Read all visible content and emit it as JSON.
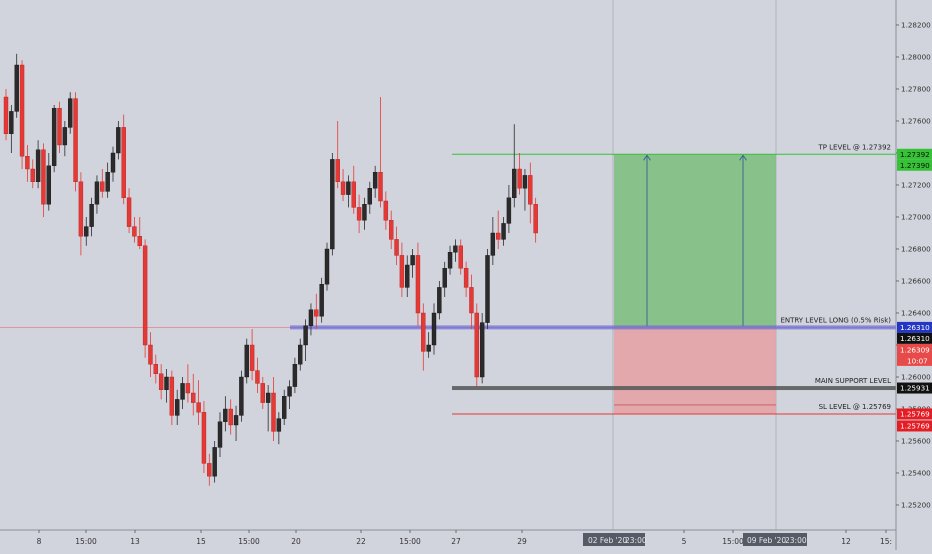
{
  "colors": {
    "background": "#d1d4dc",
    "bull_candle": "#2b2b2b",
    "bear_candle": "#e53935",
    "tp_line": "#36c236",
    "sl_line": "#e53935",
    "profit_zone": "#7dbd7d",
    "loss_zone": "#e5a0a2",
    "entry_line": "#3f3fd0",
    "support_line": "#222222"
  },
  "price_axis": {
    "ticks": [
      "1.28200",
      "1.28000",
      "1.27800",
      "1.27600",
      "1.27400",
      "1.27200",
      "1.27000",
      "1.26800",
      "1.26600",
      "1.26400",
      "1.26200",
      "1.26000",
      "1.25800",
      "1.25600",
      "1.25400",
      "1.25200"
    ],
    "scale": {
      "top_price": 1.282,
      "bottom_price": 1.252
    },
    "badges": {
      "tp_level": "1.27392",
      "current_price": "1.27390",
      "entry_level": "1.26310",
      "entry_alt": "1.26310",
      "last_price": "1.26309",
      "countdown": "10:07",
      "support": "1.25931",
      "sl_level": "1.25769",
      "sl_alt": "1.25769"
    }
  },
  "time_axis": {
    "labels": [
      "8",
      "15:00",
      "13",
      "15",
      "15:00",
      "20",
      "22",
      "15:00",
      "27",
      "29",
      "5",
      "15:00",
      "12",
      "15:"
    ],
    "highlight_labels": [
      "02 Feb '20",
      "23:00",
      "09 Feb '20",
      "23:00"
    ]
  },
  "annotations": {
    "tp_label": "TP LEVEL @ 1.27392",
    "entry_label": "ENTRY LEVEL LONG (0.5% Risk)",
    "support_label": "MAIN SUPPORT LEVEL",
    "sl_label": "SL LEVEL @ 1.25769"
  },
  "chart_data": {
    "type": "candlestick",
    "price_levels": {
      "tp": 1.27392,
      "entry": 1.2631,
      "support": 1.25931,
      "sl": 1.25769,
      "last": 1.26309
    },
    "candles": [
      [
        1.2775,
        1.278,
        1.2748,
        1.2752
      ],
      [
        1.2752,
        1.277,
        1.274,
        1.2766
      ],
      [
        1.2766,
        1.2802,
        1.2762,
        1.2795
      ],
      [
        1.2795,
        1.2798,
        1.273,
        1.2738
      ],
      [
        1.2738,
        1.2745,
        1.2722,
        1.273
      ],
      [
        1.273,
        1.2736,
        1.2718,
        1.2722
      ],
      [
        1.2722,
        1.2748,
        1.2718,
        1.2742
      ],
      [
        1.2742,
        1.2746,
        1.27,
        1.2708
      ],
      [
        1.2708,
        1.274,
        1.2704,
        1.2732
      ],
      [
        1.2732,
        1.277,
        1.2728,
        1.2768
      ],
      [
        1.2768,
        1.2772,
        1.274,
        1.2745
      ],
      [
        1.2745,
        1.276,
        1.2738,
        1.2756
      ],
      [
        1.2756,
        1.2778,
        1.2752,
        1.2774
      ],
      [
        1.2774,
        1.2778,
        1.2716,
        1.2722
      ],
      [
        1.2722,
        1.2728,
        1.2676,
        1.2688
      ],
      [
        1.2688,
        1.27,
        1.2682,
        1.2694
      ],
      [
        1.2694,
        1.2712,
        1.2688,
        1.2708
      ],
      [
        1.2708,
        1.2726,
        1.2702,
        1.2722
      ],
      [
        1.2722,
        1.273,
        1.2712,
        1.2716
      ],
      [
        1.2716,
        1.2734,
        1.2712,
        1.2728
      ],
      [
        1.2728,
        1.2744,
        1.2722,
        1.274
      ],
      [
        1.274,
        1.276,
        1.2736,
        1.2756
      ],
      [
        1.2756,
        1.2764,
        1.2708,
        1.2712
      ],
      [
        1.2712,
        1.2718,
        1.269,
        1.2694
      ],
      [
        1.2694,
        1.27,
        1.2684,
        1.2688
      ],
      [
        1.2688,
        1.27,
        1.268,
        1.2682
      ],
      [
        1.2682,
        1.2686,
        1.2612,
        1.262
      ],
      [
        1.262,
        1.2628,
        1.26,
        1.2608
      ],
      [
        1.2608,
        1.2614,
        1.2596,
        1.2602
      ],
      [
        1.2602,
        1.2608,
        1.2586,
        1.2592
      ],
      [
        1.2592,
        1.2605,
        1.2584,
        1.26
      ],
      [
        1.26,
        1.2604,
        1.257,
        1.2576
      ],
      [
        1.2576,
        1.2592,
        1.257,
        1.2586
      ],
      [
        1.2586,
        1.26,
        1.258,
        1.2596
      ],
      [
        1.2596,
        1.2608,
        1.2584,
        1.259
      ],
      [
        1.259,
        1.2602,
        1.2576,
        1.2584
      ],
      [
        1.2584,
        1.2598,
        1.257,
        1.2578
      ],
      [
        1.2578,
        1.2585,
        1.254,
        1.2546
      ],
      [
        1.2546,
        1.2552,
        1.2532,
        1.2538
      ],
      [
        1.2538,
        1.256,
        1.2534,
        1.2556
      ],
      [
        1.2556,
        1.2578,
        1.255,
        1.2572
      ],
      [
        1.2572,
        1.2588,
        1.2566,
        1.258
      ],
      [
        1.258,
        1.2586,
        1.2564,
        1.257
      ],
      [
        1.257,
        1.2582,
        1.256,
        1.2576
      ],
      [
        1.2576,
        1.2604,
        1.2572,
        1.26
      ],
      [
        1.26,
        1.2624,
        1.2596,
        1.262
      ],
      [
        1.262,
        1.263,
        1.2598,
        1.2604
      ],
      [
        1.2604,
        1.2612,
        1.259,
        1.2596
      ],
      [
        1.2596,
        1.26,
        1.258,
        1.2584
      ],
      [
        1.2584,
        1.2595,
        1.2566,
        1.259
      ],
      [
        1.259,
        1.26,
        1.256,
        1.2566
      ],
      [
        1.2566,
        1.2578,
        1.2558,
        1.2574
      ],
      [
        1.2574,
        1.2592,
        1.257,
        1.2588
      ],
      [
        1.2588,
        1.2598,
        1.258,
        1.2594
      ],
      [
        1.2594,
        1.2612,
        1.259,
        1.2608
      ],
      [
        1.2608,
        1.2624,
        1.2604,
        1.262
      ],
      [
        1.262,
        1.2636,
        1.261,
        1.2632
      ],
      [
        1.2632,
        1.2646,
        1.2626,
        1.2642
      ],
      [
        1.2642,
        1.2652,
        1.263,
        1.2638
      ],
      [
        1.2638,
        1.2662,
        1.2634,
        1.2658
      ],
      [
        1.2658,
        1.2684,
        1.2654,
        1.268
      ],
      [
        1.268,
        1.274,
        1.2676,
        1.2736
      ],
      [
        1.2736,
        1.276,
        1.2718,
        1.2722
      ],
      [
        1.2722,
        1.273,
        1.271,
        1.2714
      ],
      [
        1.2714,
        1.2726,
        1.2706,
        1.2722
      ],
      [
        1.2722,
        1.2732,
        1.2702,
        1.2706
      ],
      [
        1.2706,
        1.2714,
        1.269,
        1.2698
      ],
      [
        1.2698,
        1.2712,
        1.2692,
        1.2708
      ],
      [
        1.2708,
        1.2722,
        1.2702,
        1.2718
      ],
      [
        1.2718,
        1.2732,
        1.2712,
        1.2728
      ],
      [
        1.2728,
        1.2775,
        1.2706,
        1.271
      ],
      [
        1.271,
        1.2716,
        1.2692,
        1.2698
      ],
      [
        1.2698,
        1.2704,
        1.268,
        1.2686
      ],
      [
        1.2686,
        1.2694,
        1.267,
        1.2676
      ],
      [
        1.2676,
        1.2684,
        1.265,
        1.2656
      ],
      [
        1.2656,
        1.2676,
        1.265,
        1.267
      ],
      [
        1.267,
        1.268,
        1.2662,
        1.2676
      ],
      [
        1.2676,
        1.2684,
        1.2632,
        1.264
      ],
      [
        1.264,
        1.2646,
        1.2604,
        1.2616
      ],
      [
        1.2616,
        1.2628,
        1.2612,
        1.262
      ],
      [
        1.262,
        1.2646,
        1.2614,
        1.264
      ],
      [
        1.264,
        1.266,
        1.2636,
        1.2656
      ],
      [
        1.2656,
        1.2672,
        1.265,
        1.2668
      ],
      [
        1.2668,
        1.2682,
        1.2664,
        1.2678
      ],
      [
        1.2678,
        1.2686,
        1.2672,
        1.2682
      ],
      [
        1.2682,
        1.2686,
        1.2664,
        1.2668
      ],
      [
        1.2668,
        1.2672,
        1.265,
        1.2656
      ],
      [
        1.2656,
        1.2664,
        1.263,
        1.264
      ],
      [
        1.264,
        1.2646,
        1.2594,
        1.26
      ],
      [
        1.26,
        1.264,
        1.2596,
        1.2634
      ],
      [
        1.2634,
        1.268,
        1.263,
        1.2676
      ],
      [
        1.2676,
        1.27,
        1.267,
        1.269
      ],
      [
        1.269,
        1.2704,
        1.268,
        1.2686
      ],
      [
        1.2686,
        1.27,
        1.2682,
        1.2696
      ],
      [
        1.2696,
        1.272,
        1.269,
        1.2712
      ],
      [
        1.2712,
        1.2758,
        1.2706,
        1.273
      ],
      [
        1.273,
        1.274,
        1.2714,
        1.2718
      ],
      [
        1.2718,
        1.273,
        1.2704,
        1.2726
      ],
      [
        1.2726,
        1.2734,
        1.2696,
        1.2708
      ],
      [
        1.2708,
        1.2712,
        1.2684,
        1.269
      ]
    ]
  }
}
